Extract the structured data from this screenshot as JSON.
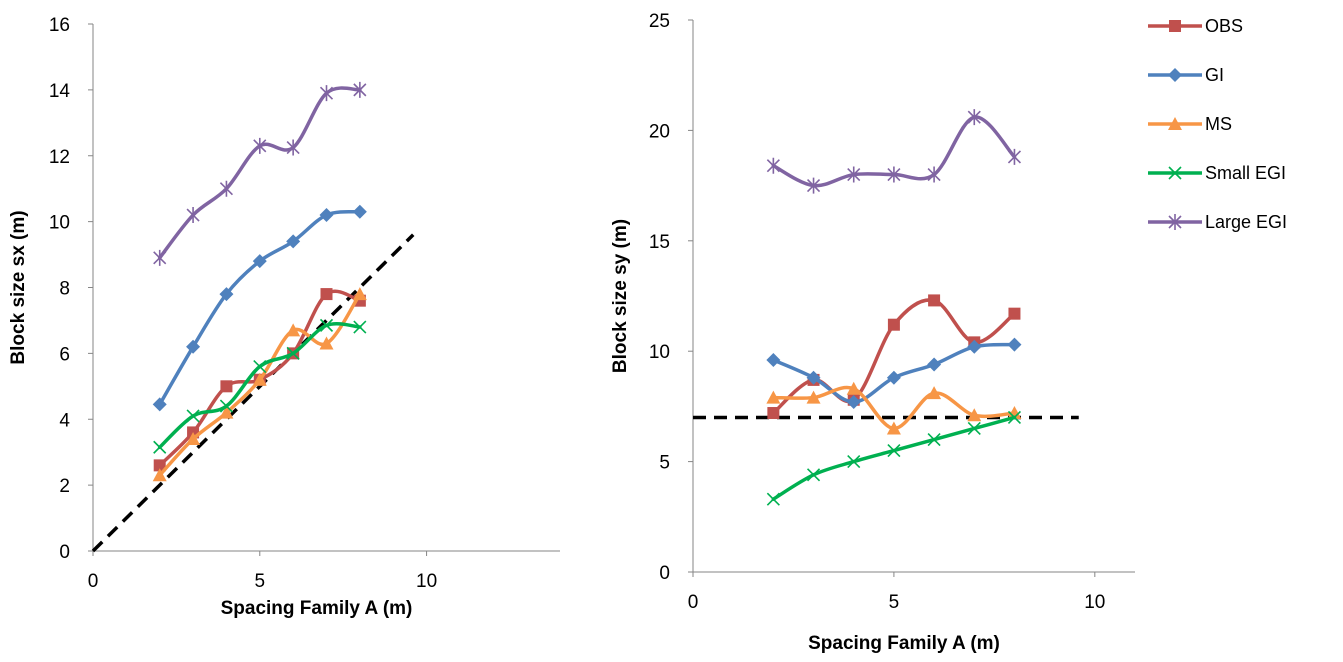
{
  "legend": {
    "placement": "right",
    "entries": [
      {
        "name": "OBS",
        "color": "#C0504D",
        "marker": "square"
      },
      {
        "name": "GI",
        "color": "#4F81BD",
        "marker": "diamond"
      },
      {
        "name": "MS",
        "color": "#F79646",
        "marker": "triangle"
      },
      {
        "name": "Small EGI",
        "color": "#00B050",
        "marker": "x"
      },
      {
        "name": "Large EGI",
        "color": "#8064A2",
        "marker": "star"
      }
    ]
  },
  "chart_data": [
    {
      "type": "line",
      "title": "",
      "xlabel": "Spacing Family A (m)",
      "ylabel": "Block size sx (m)",
      "xlim": [
        0,
        14
      ],
      "ylim": [
        0,
        16
      ],
      "xticks": [
        0,
        5,
        10
      ],
      "yticks": [
        0,
        2,
        4,
        6,
        8,
        10,
        12,
        14,
        16
      ],
      "grid": false,
      "x": [
        2,
        3,
        4,
        5,
        6,
        7,
        8
      ],
      "series": [
        {
          "name": "OBS",
          "values": [
            2.6,
            3.6,
            5.0,
            5.2,
            6.0,
            7.8,
            7.6
          ]
        },
        {
          "name": "GI",
          "values": [
            4.45,
            6.2,
            7.8,
            8.8,
            9.4,
            10.2,
            10.3
          ]
        },
        {
          "name": "MS",
          "values": [
            2.3,
            3.4,
            4.2,
            5.2,
            6.7,
            6.3,
            7.8
          ]
        },
        {
          "name": "Small EGI",
          "values": [
            3.15,
            4.1,
            4.4,
            5.6,
            6.0,
            6.85,
            6.8
          ]
        },
        {
          "name": "Large EGI",
          "values": [
            8.9,
            10.2,
            11.0,
            12.3,
            12.25,
            13.9,
            14.0
          ]
        }
      ],
      "reference_line": {
        "style": "dashed",
        "color": "#000000",
        "x": [
          0,
          9.6
        ],
        "y": [
          0,
          9.6
        ]
      }
    },
    {
      "type": "line",
      "title": "",
      "xlabel": "Spacing Family A (m)",
      "ylabel": "Block size sy (m)",
      "xlim": [
        0,
        11
      ],
      "ylim": [
        0,
        25
      ],
      "xticks": [
        0,
        5,
        10
      ],
      "yticks": [
        0,
        5,
        10,
        15,
        20,
        25
      ],
      "grid": false,
      "x": [
        2,
        3,
        4,
        5,
        6,
        7,
        8
      ],
      "series": [
        {
          "name": "OBS",
          "values": [
            7.2,
            8.7,
            7.8,
            11.2,
            12.3,
            10.4,
            11.7
          ]
        },
        {
          "name": "GI",
          "values": [
            9.6,
            8.8,
            7.7,
            8.8,
            9.4,
            10.2,
            10.3
          ]
        },
        {
          "name": "MS",
          "values": [
            7.9,
            7.9,
            8.3,
            6.5,
            8.1,
            7.1,
            7.2
          ]
        },
        {
          "name": "Small EGI",
          "values": [
            3.3,
            4.4,
            5.0,
            5.5,
            6.0,
            6.5,
            7.0
          ]
        },
        {
          "name": "Large EGI",
          "values": [
            18.4,
            17.5,
            18.0,
            18.0,
            18.0,
            20.6,
            18.8
          ]
        }
      ],
      "reference_line": {
        "style": "dashed",
        "color": "#000000",
        "x": [
          0,
          9.6
        ],
        "y": [
          7,
          7
        ]
      }
    }
  ]
}
